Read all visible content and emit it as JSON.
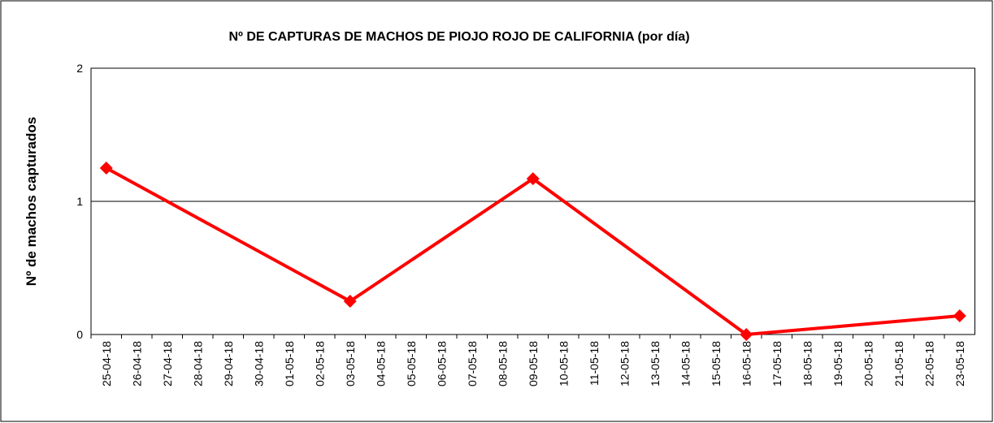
{
  "chart_data": {
    "type": "line",
    "title": "Nº DE CAPTURAS DE MACHOS DE PIOJO ROJO DE CALIFORNIA (por día)",
    "y_label": "Nº de machos capturados",
    "categories": [
      "25-04-18",
      "26-04-18",
      "27-04-18",
      "28-04-18",
      "29-04-18",
      "30-04-18",
      "01-05-18",
      "02-05-18",
      "03-05-18",
      "04-05-18",
      "05-05-18",
      "06-05-18",
      "07-05-18",
      "08-05-18",
      "09-05-18",
      "10-05-18",
      "11-05-18",
      "12-05-18",
      "13-05-18",
      "14-05-18",
      "15-05-18",
      "16-05-18",
      "17-05-18",
      "18-05-18",
      "19-05-18",
      "20-05-18",
      "21-05-18",
      "22-05-18",
      "23-05-18"
    ],
    "series": [
      {
        "color": "#ff0000",
        "x": [
          "25-04-18",
          "03-05-18",
          "09-05-18",
          "16-05-18",
          "23-05-18"
        ],
        "values": [
          1.25,
          0.25,
          1.17,
          0,
          0.14
        ]
      }
    ],
    "ylim": [
      0,
      2
    ],
    "yticks": [
      0,
      1,
      2
    ],
    "grid": true
  }
}
